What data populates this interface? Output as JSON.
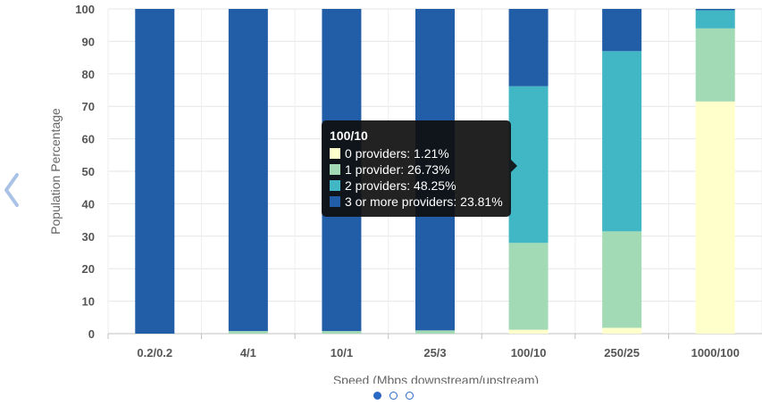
{
  "chart_data": {
    "type": "bar",
    "stacked": true,
    "categories": [
      "0.2/0.2",
      "4/1",
      "10/1",
      "25/3",
      "100/10",
      "250/25",
      "1000/100"
    ],
    "xlabel": "Speed (Mbps downstream/upstream)",
    "ylabel": "Population Percentage",
    "ylim": [
      0,
      100
    ],
    "yticks": [
      0,
      10,
      20,
      30,
      40,
      50,
      60,
      70,
      80,
      90,
      100
    ],
    "grid": true,
    "series": [
      {
        "name": "0 providers",
        "color": "#ffffcc",
        "values": [
          0,
          0,
          0,
          0,
          1.21,
          1.8,
          71.5
        ]
      },
      {
        "name": "1 provider",
        "color": "#a1dab4",
        "values": [
          0,
          0.8,
          0.8,
          1.0,
          26.73,
          29.7,
          22.5
        ]
      },
      {
        "name": "2 providers",
        "color": "#41b6c4",
        "values": [
          0,
          0,
          0,
          0,
          48.25,
          55.5,
          5.6
        ]
      },
      {
        "name": "3 or more providers",
        "color": "#225ea8",
        "values": [
          100,
          99.2,
          99.2,
          99.0,
          23.81,
          13.0,
          0.4
        ]
      }
    ],
    "tooltip": {
      "category": "100/10",
      "rows": [
        {
          "label": "0 providers: 1.21%",
          "color": "#ffffcc"
        },
        {
          "label": "1 provider: 26.73%",
          "color": "#a1dab4"
        },
        {
          "label": "2 providers: 48.25%",
          "color": "#41b6c4"
        },
        {
          "label": "3 or more providers: 23.81%",
          "color": "#225ea8"
        }
      ]
    }
  },
  "nav": {
    "prev_icon": "chevron-left-icon",
    "accent": "#2a69c3",
    "pages": 3,
    "active_page": 1
  }
}
